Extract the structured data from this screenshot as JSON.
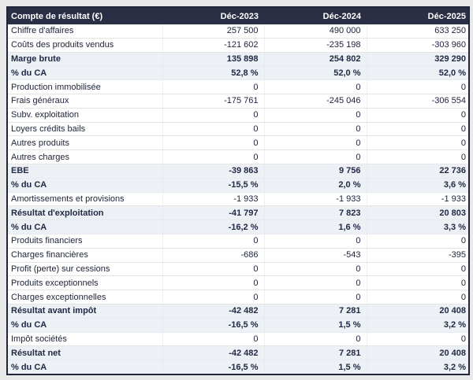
{
  "table": {
    "title_column": "Compte de résultat (€)",
    "columns": [
      "Compte de résultat (€)",
      "Déc-2023",
      "Déc-2024",
      "Déc-2025"
    ],
    "rows": [
      {
        "label": "Chiffre d'affaires",
        "values": [
          "257 500",
          "490 000",
          "633 250"
        ],
        "emphasis": false
      },
      {
        "label": "Coûts des produits vendus",
        "values": [
          "-121 602",
          "-235 198",
          "-303 960"
        ],
        "emphasis": false
      },
      {
        "label": "Marge brute",
        "values": [
          "135 898",
          "254 802",
          "329 290"
        ],
        "emphasis": true
      },
      {
        "label": "% du CA",
        "values": [
          "52,8 %",
          "52,0 %",
          "52,0 %"
        ],
        "emphasis": true
      },
      {
        "label": "Production immobilisée",
        "values": [
          "0",
          "0",
          "0"
        ],
        "emphasis": false
      },
      {
        "label": "Frais généraux",
        "values": [
          "-175 761",
          "-245 046",
          "-306 554"
        ],
        "emphasis": false
      },
      {
        "label": "Subv. exploitation",
        "values": [
          "0",
          "0",
          "0"
        ],
        "emphasis": false
      },
      {
        "label": "Loyers crédits bails",
        "values": [
          "0",
          "0",
          "0"
        ],
        "emphasis": false
      },
      {
        "label": "Autres produits",
        "values": [
          "0",
          "0",
          "0"
        ],
        "emphasis": false
      },
      {
        "label": "Autres charges",
        "values": [
          "0",
          "0",
          "0"
        ],
        "emphasis": false
      },
      {
        "label": "EBE",
        "values": [
          "-39 863",
          "9 756",
          "22 736"
        ],
        "emphasis": true
      },
      {
        "label": "% du CA",
        "values": [
          "-15,5 %",
          "2,0 %",
          "3,6 %"
        ],
        "emphasis": true
      },
      {
        "label": "Amortissements et provisions",
        "values": [
          "-1 933",
          "-1 933",
          "-1 933"
        ],
        "emphasis": false
      },
      {
        "label": "Résultat d'exploitation",
        "values": [
          "-41 797",
          "7 823",
          "20 803"
        ],
        "emphasis": true
      },
      {
        "label": "% du CA",
        "values": [
          "-16,2 %",
          "1,6 %",
          "3,3 %"
        ],
        "emphasis": true
      },
      {
        "label": "Produits financiers",
        "values": [
          "0",
          "0",
          "0"
        ],
        "emphasis": false
      },
      {
        "label": "Charges financières",
        "values": [
          "-686",
          "-543",
          "-395"
        ],
        "emphasis": false
      },
      {
        "label": "Profit (perte) sur cessions",
        "values": [
          "0",
          "0",
          "0"
        ],
        "emphasis": false
      },
      {
        "label": "Produits exceptionnels",
        "values": [
          "0",
          "0",
          "0"
        ],
        "emphasis": false
      },
      {
        "label": "Charges exceptionnelles",
        "values": [
          "0",
          "0",
          "0"
        ],
        "emphasis": false
      },
      {
        "label": "Résultat avant impôt",
        "values": [
          "-42 482",
          "7 281",
          "20 408"
        ],
        "emphasis": true
      },
      {
        "label": "% du CA",
        "values": [
          "-16,5 %",
          "1,5 %",
          "3,2 %"
        ],
        "emphasis": true
      },
      {
        "label": "Impôt sociétés",
        "values": [
          "0",
          "0",
          "0"
        ],
        "emphasis": false
      },
      {
        "label": "Résultat net",
        "values": [
          "-42 482",
          "7 281",
          "20 408"
        ],
        "emphasis": true
      },
      {
        "label": "% du CA",
        "values": [
          "-16,5 %",
          "1,5 %",
          "3,2 %"
        ],
        "emphasis": true
      }
    ]
  },
  "colors": {
    "header_bg": "#2b2f45",
    "header_text": "#ffffff",
    "emphasis_row_bg": "#edf1f6",
    "body_text": "#20263c",
    "outer_border": "#20253a",
    "row_divider": "#e5e5e5",
    "page_bg": "#e9e9e9"
  },
  "chart_data": {
    "type": "table",
    "title": "Compte de résultat (€)",
    "categories": [
      "Déc-2023",
      "Déc-2024",
      "Déc-2025"
    ],
    "series": [
      {
        "name": "Chiffre d'affaires",
        "values": [
          257500,
          490000,
          633250
        ]
      },
      {
        "name": "Coûts des produits vendus",
        "values": [
          -121602,
          -235198,
          -303960
        ]
      },
      {
        "name": "Marge brute",
        "values": [
          135898,
          254802,
          329290
        ]
      },
      {
        "name": "Marge brute % du CA",
        "values": [
          52.8,
          52.0,
          52.0
        ]
      },
      {
        "name": "Production immobilisée",
        "values": [
          0,
          0,
          0
        ]
      },
      {
        "name": "Frais généraux",
        "values": [
          -175761,
          -245046,
          -306554
        ]
      },
      {
        "name": "Subv. exploitation",
        "values": [
          0,
          0,
          0
        ]
      },
      {
        "name": "Loyers crédits bails",
        "values": [
          0,
          0,
          0
        ]
      },
      {
        "name": "Autres produits",
        "values": [
          0,
          0,
          0
        ]
      },
      {
        "name": "Autres charges",
        "values": [
          0,
          0,
          0
        ]
      },
      {
        "name": "EBE",
        "values": [
          -39863,
          9756,
          22736
        ]
      },
      {
        "name": "EBE % du CA",
        "values": [
          -15.5,
          2.0,
          3.6
        ]
      },
      {
        "name": "Amortissements et provisions",
        "values": [
          -1933,
          -1933,
          -1933
        ]
      },
      {
        "name": "Résultat d'exploitation",
        "values": [
          -41797,
          7823,
          20803
        ]
      },
      {
        "name": "Résultat d'exploitation % du CA",
        "values": [
          -16.2,
          1.6,
          3.3
        ]
      },
      {
        "name": "Produits financiers",
        "values": [
          0,
          0,
          0
        ]
      },
      {
        "name": "Charges financières",
        "values": [
          -686,
          -543,
          -395
        ]
      },
      {
        "name": "Profit (perte) sur cessions",
        "values": [
          0,
          0,
          0
        ]
      },
      {
        "name": "Produits exceptionnels",
        "values": [
          0,
          0,
          0
        ]
      },
      {
        "name": "Charges exceptionnelles",
        "values": [
          0,
          0,
          0
        ]
      },
      {
        "name": "Résultat avant impôt",
        "values": [
          -42482,
          7281,
          20408
        ]
      },
      {
        "name": "Résultat avant impôt % du CA",
        "values": [
          -16.5,
          1.5,
          3.2
        ]
      },
      {
        "name": "Impôt sociétés",
        "values": [
          0,
          0,
          0
        ]
      },
      {
        "name": "Résultat net",
        "values": [
          -42482,
          7281,
          20408
        ]
      },
      {
        "name": "Résultat net % du CA",
        "values": [
          -16.5,
          1.5,
          3.2
        ]
      }
    ]
  }
}
